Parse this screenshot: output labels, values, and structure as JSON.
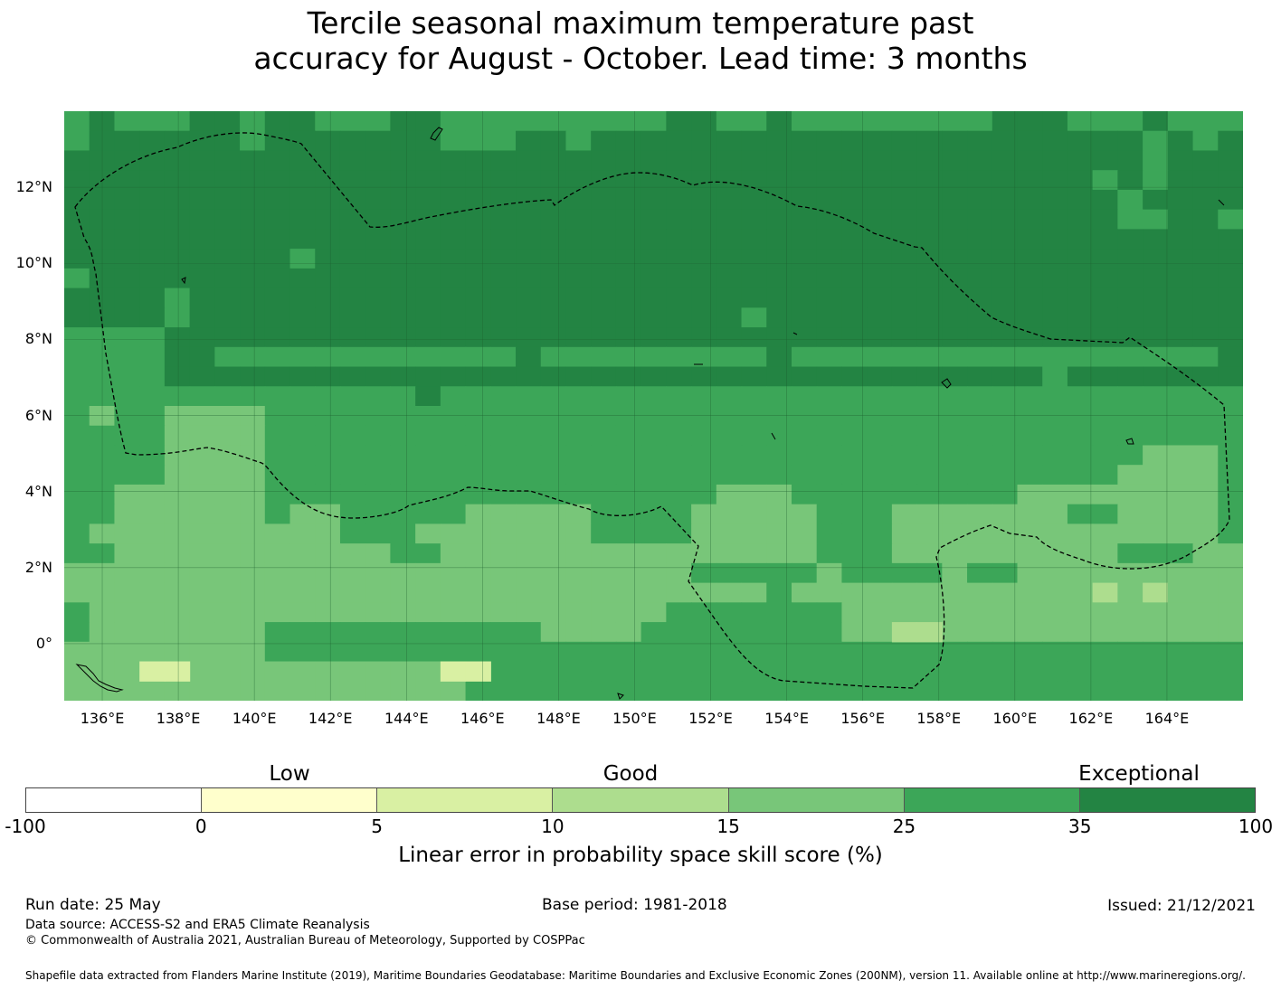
{
  "title": {
    "line1": "Tercile seasonal maximum temperature past",
    "line2": "accuracy for August - October. Lead time: 3 months"
  },
  "map": {
    "longitude_ticks": [
      "136°E",
      "138°E",
      "140°E",
      "142°E",
      "144°E",
      "146°E",
      "148°E",
      "150°E",
      "152°E",
      "154°E",
      "156°E",
      "158°E",
      "160°E",
      "162°E",
      "164°E"
    ],
    "latitude_ticks": [
      "12°N",
      "10°N",
      "8°N",
      "6°N",
      "4°N",
      "2°N",
      "0°"
    ],
    "extent": {
      "lon_min": 135,
      "lon_max": 166,
      "lat_min": -1.5,
      "lat_max": 14
    },
    "cell_size_deg": 0.83,
    "category_colors": [
      "#ffffff",
      "#ffffcc",
      "#d9f0a3",
      "#addd8e",
      "#78c679",
      "#3ca658",
      "#238443"
    ],
    "grid_line_color": "#1e5f30",
    "eez_boundary_style": "black dashed"
  },
  "legend": {
    "categories": [
      "Low",
      "Good",
      "Exceptional"
    ],
    "ticks": [
      "-100",
      "0",
      "5",
      "10",
      "15",
      "25",
      "35",
      "100"
    ],
    "colors": [
      "#ffffff",
      "#ffffcc",
      "#d9f0a3",
      "#addd8e",
      "#78c679",
      "#3ca658",
      "#238443"
    ],
    "label": "Linear error in probability space skill score (%)"
  },
  "footer": {
    "run_date": "Run date: 25 May",
    "base_period": "Base period: 1981-2018",
    "issued": "Issued: 21/12/2021",
    "data_source": "Data source: ACCESS-S2 and ERA5 Climate Reanalysis",
    "copyright": "© Commonwealth of Australia 2021, Australian Bureau of Meteorology, Supported by COSPPac",
    "shapefile": "Shapefile data extracted from Flanders Marine Institute (2019), Maritime Boundaries Geodatabase: Maritime Boundaries and Exclusive Economic Zones (200NM), version 11. Available online at http://www.marineregions.org/."
  }
}
